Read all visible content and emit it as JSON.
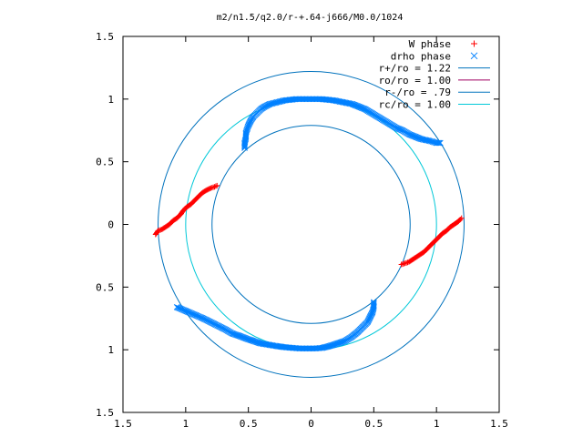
{
  "chart_data": {
    "type": "scatter",
    "title": "m2/n1.5/q2.0/r-+.64-j666/M0.0/1024",
    "xlabel": "",
    "ylabel": "",
    "xlim": [
      -1.5,
      1.5
    ],
    "ylim": [
      -1.5,
      1.5
    ],
    "x_ticks": [
      -1.5,
      -1,
      -0.5,
      0,
      0.5,
      1,
      1.5
    ],
    "x_tick_labels": [
      "1.5",
      "1",
      "0.5",
      "0",
      "0.5",
      "1",
      "1.5"
    ],
    "y_ticks": [
      1.5,
      1,
      0.5,
      0,
      -0.5,
      -1,
      -1.5
    ],
    "y_tick_labels": [
      "1.5",
      "1",
      "0.5",
      "0",
      "0.5",
      "1",
      "1.5"
    ],
    "grid": false,
    "legend_position": "top-right",
    "point_series": [
      {
        "name": "W phase",
        "marker": "plus",
        "color": "#ff0000",
        "segments": [
          {
            "x": [
              -1.24,
              -1.22,
              -1.19,
              -1.16,
              -1.13,
              -1.1,
              -1.07,
              -1.04,
              -1.02,
              -0.99,
              -0.96,
              -0.93,
              -0.9,
              -0.87,
              -0.84,
              -0.8,
              -0.77,
              -0.75
            ],
            "y": [
              -0.08,
              -0.05,
              -0.04,
              -0.02,
              0.0,
              0.03,
              0.05,
              0.08,
              0.11,
              0.14,
              0.16,
              0.19,
              0.22,
              0.25,
              0.27,
              0.29,
              0.3,
              0.31
            ]
          },
          {
            "x": [
              0.72,
              0.75,
              0.78,
              0.81,
              0.84,
              0.87,
              0.9,
              0.93,
              0.96,
              0.99,
              1.02,
              1.05,
              1.08,
              1.11,
              1.14,
              1.17,
              1.19,
              1.2
            ],
            "y": [
              -0.32,
              -0.31,
              -0.3,
              -0.28,
              -0.26,
              -0.24,
              -0.22,
              -0.19,
              -0.16,
              -0.13,
              -0.1,
              -0.07,
              -0.05,
              -0.02,
              0.0,
              0.02,
              0.04,
              0.05
            ]
          }
        ]
      },
      {
        "name": "drho phase",
        "marker": "cross",
        "color": "#0080ff",
        "segments": [
          {
            "x": [
              -0.53,
              -0.53,
              -0.52,
              -0.52,
              -0.51,
              -0.5,
              -0.48,
              -0.46,
              -0.43,
              -0.4,
              -0.37,
              -0.33,
              -0.29,
              -0.25,
              -0.21,
              -0.16,
              -0.12,
              -0.08,
              -0.04,
              0.0,
              0.04,
              0.08,
              0.13,
              0.18,
              0.23,
              0.28,
              0.33,
              0.38,
              0.43,
              0.48,
              0.53,
              0.58,
              0.63,
              0.68,
              0.73,
              0.78,
              0.83,
              0.88,
              0.93,
              0.97,
              1.0,
              1.03
            ],
            "y": [
              0.61,
              0.65,
              0.69,
              0.73,
              0.76,
              0.79,
              0.83,
              0.86,
              0.89,
              0.92,
              0.94,
              0.96,
              0.97,
              0.98,
              0.99,
              0.995,
              1.0,
              1.0,
              1.0,
              1.0,
              1.0,
              1.0,
              0.995,
              0.99,
              0.98,
              0.97,
              0.96,
              0.94,
              0.92,
              0.89,
              0.86,
              0.83,
              0.8,
              0.77,
              0.75,
              0.72,
              0.7,
              0.68,
              0.67,
              0.66,
              0.65,
              0.65
            ]
          },
          {
            "x": [
              -1.07,
              -1.0,
              -0.93,
              -0.86,
              -0.8,
              -0.74,
              -0.68,
              -0.63,
              -0.57,
              -0.52,
              -0.46,
              -0.4,
              -0.34,
              -0.28,
              -0.21,
              -0.15,
              -0.09,
              -0.03,
              0.03,
              0.09,
              0.15,
              0.21,
              0.27,
              0.32,
              0.37,
              0.41,
              0.45,
              0.47,
              0.49,
              0.5,
              0.5
            ],
            "y": [
              -0.66,
              -0.69,
              -0.72,
              -0.75,
              -0.78,
              -0.81,
              -0.84,
              -0.87,
              -0.89,
              -0.91,
              -0.93,
              -0.95,
              -0.96,
              -0.97,
              -0.98,
              -0.985,
              -0.99,
              -0.99,
              -0.99,
              -0.985,
              -0.97,
              -0.95,
              -0.93,
              -0.9,
              -0.86,
              -0.82,
              -0.78,
              -0.74,
              -0.7,
              -0.66,
              -0.62
            ]
          }
        ]
      }
    ],
    "circle_series": [
      {
        "name": "r+/ro = 1.22",
        "radius": 1.22,
        "color": "#0072bd"
      },
      {
        "name": "ro/ro = 1.00",
        "radius": 1.0,
        "color": "#a00060",
        "line_in_plot": false
      },
      {
        "name": "r-/ro = .79",
        "radius": 0.79,
        "color": "#0072bd"
      },
      {
        "name": "rc/ro = 1.00",
        "radius": 1.0,
        "color": "#00c8d8"
      }
    ]
  }
}
